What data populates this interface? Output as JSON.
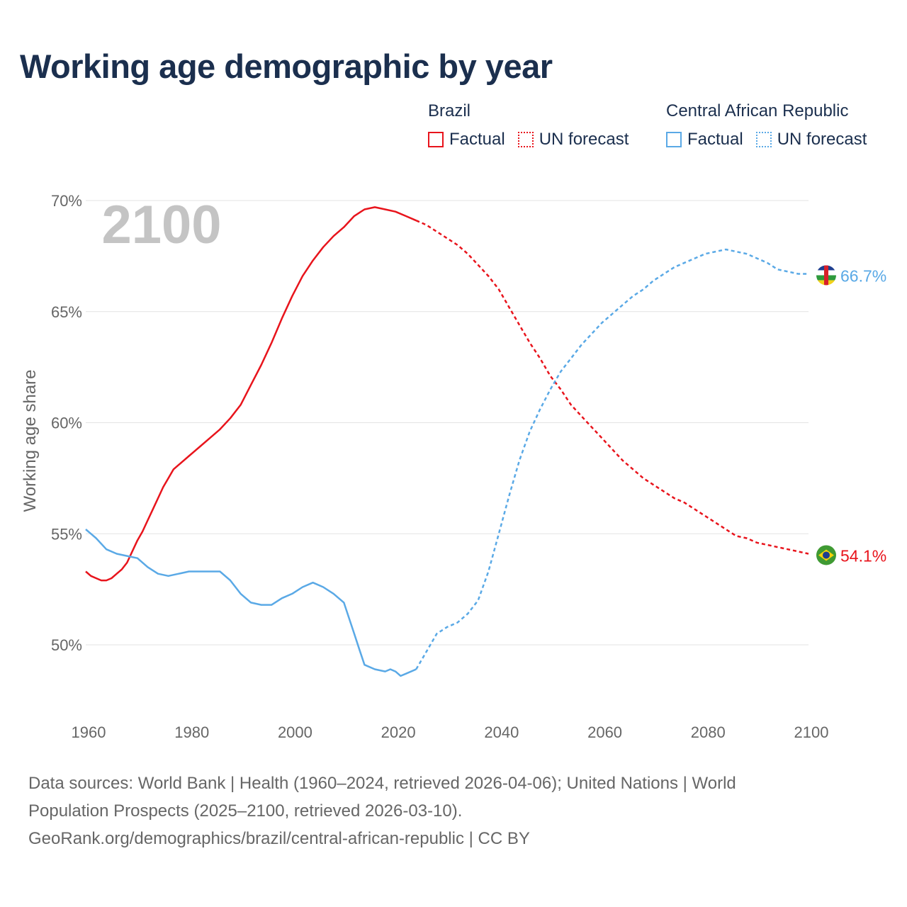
{
  "title": "Working age demographic by year",
  "legend": {
    "groups": [
      {
        "country": "Brazil",
        "color": "#e8141c",
        "items": [
          {
            "label": "Factual",
            "style": "solid"
          },
          {
            "label": "UN forecast",
            "style": "dotted"
          }
        ]
      },
      {
        "country": "Central African Republic",
        "color": "#5aa9e6",
        "items": [
          {
            "label": "Factual",
            "style": "solid"
          },
          {
            "label": "UN forecast",
            "style": "dotted"
          }
        ]
      }
    ]
  },
  "footer": {
    "line1": "Data sources: World Bank | Health (1960–2024, retrieved 2026-04-06); United Nations | World",
    "line2": "Population Prospects (2025–2100, retrieved 2026-03-10).",
    "line3": "GeoRank.org/demographics/brazil/central-african-republic | CC BY"
  },
  "chart_data": {
    "type": "line",
    "title": "Working age demographic by year",
    "year_label": "2100",
    "xlabel": "",
    "ylabel": "Working age share",
    "xlim": [
      1960,
      2100
    ],
    "ylim": [
      47.5,
      71.5
    ],
    "x_ticks": [
      1960,
      1980,
      2000,
      2020,
      2040,
      2060,
      2080,
      2100
    ],
    "y_ticks": [
      50,
      55,
      60,
      65,
      70
    ],
    "y_tick_labels": [
      "50%",
      "55%",
      "60%",
      "65%",
      "70%"
    ],
    "grid": true,
    "forecast_start": 2024,
    "series": [
      {
        "name": "Brazil",
        "color": "#e8141c",
        "end_label": "54.1%",
        "flag": "brazil-flag",
        "x": [
          1960,
          1961,
          1962,
          1963,
          1964,
          1965,
          1966,
          1967,
          1968,
          1969,
          1970,
          1971,
          1972,
          1973,
          1974,
          1975,
          1976,
          1977,
          1978,
          1979,
          1980,
          1982,
          1984,
          1986,
          1988,
          1990,
          1992,
          1994,
          1996,
          1998,
          2000,
          2002,
          2004,
          2006,
          2008,
          2010,
          2012,
          2014,
          2016,
          2018,
          2020,
          2022,
          2024,
          2026,
          2028,
          2030,
          2032,
          2034,
          2036,
          2038,
          2040,
          2042,
          2044,
          2046,
          2048,
          2050,
          2052,
          2054,
          2056,
          2058,
          2060,
          2062,
          2064,
          2066,
          2068,
          2070,
          2072,
          2074,
          2076,
          2078,
          2080,
          2082,
          2084,
          2086,
          2088,
          2090,
          2092,
          2094,
          2096,
          2098,
          2100
        ],
        "y": [
          53.3,
          53.1,
          53.0,
          52.9,
          52.9,
          53.0,
          53.2,
          53.4,
          53.7,
          54.2,
          54.7,
          55.1,
          55.6,
          56.1,
          56.6,
          57.1,
          57.5,
          57.9,
          58.1,
          58.3,
          58.5,
          58.9,
          59.3,
          59.7,
          60.2,
          60.8,
          61.7,
          62.6,
          63.6,
          64.7,
          65.7,
          66.6,
          67.3,
          67.9,
          68.4,
          68.8,
          69.3,
          69.6,
          69.7,
          69.6,
          69.5,
          69.3,
          69.1,
          68.9,
          68.6,
          68.3,
          68.0,
          67.6,
          67.1,
          66.6,
          66.0,
          65.2,
          64.4,
          63.6,
          62.9,
          62.1,
          61.5,
          60.8,
          60.3,
          59.8,
          59.3,
          58.8,
          58.3,
          57.9,
          57.5,
          57.2,
          56.9,
          56.6,
          56.4,
          56.1,
          55.8,
          55.5,
          55.2,
          54.9,
          54.8,
          54.6,
          54.5,
          54.4,
          54.3,
          54.2,
          54.1
        ]
      },
      {
        "name": "Central African Republic",
        "color": "#5aa9e6",
        "end_label": "66.7%",
        "flag": "central-african-republic-flag",
        "x": [
          1960,
          1962,
          1964,
          1966,
          1968,
          1970,
          1972,
          1974,
          1976,
          1978,
          1980,
          1982,
          1984,
          1986,
          1988,
          1990,
          1992,
          1994,
          1996,
          1998,
          2000,
          2002,
          2004,
          2006,
          2008,
          2010,
          2011,
          2012,
          2013,
          2014,
          2016,
          2018,
          2019,
          2020,
          2021,
          2022,
          2024,
          2026,
          2028,
          2030,
          2032,
          2034,
          2036,
          2038,
          2040,
          2042,
          2044,
          2046,
          2048,
          2050,
          2052,
          2054,
          2056,
          2058,
          2060,
          2062,
          2064,
          2066,
          2068,
          2070,
          2072,
          2074,
          2076,
          2078,
          2080,
          2082,
          2084,
          2086,
          2088,
          2090,
          2092,
          2094,
          2096,
          2098,
          2100
        ],
        "y": [
          55.2,
          54.8,
          54.3,
          54.1,
          54.0,
          53.9,
          53.5,
          53.2,
          53.1,
          53.2,
          53.3,
          53.3,
          53.3,
          53.3,
          52.9,
          52.3,
          51.9,
          51.8,
          51.8,
          52.1,
          52.3,
          52.6,
          52.8,
          52.6,
          52.3,
          51.9,
          51.2,
          50.5,
          49.8,
          49.1,
          48.9,
          48.8,
          48.9,
          48.8,
          48.6,
          48.7,
          48.9,
          49.7,
          50.5,
          50.8,
          51.0,
          51.4,
          52.0,
          53.3,
          55.0,
          56.7,
          58.3,
          59.6,
          60.6,
          61.5,
          62.3,
          62.9,
          63.5,
          64.0,
          64.5,
          64.9,
          65.3,
          65.7,
          66.0,
          66.4,
          66.7,
          67.0,
          67.2,
          67.4,
          67.6,
          67.7,
          67.8,
          67.7,
          67.6,
          67.4,
          67.2,
          66.9,
          66.8,
          66.7,
          66.7
        ]
      }
    ]
  }
}
